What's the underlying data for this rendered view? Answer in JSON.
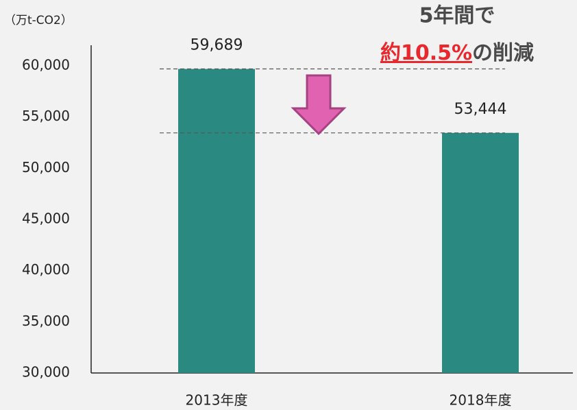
{
  "chart_data": {
    "type": "bar",
    "unit_label": "（万t-CO2）",
    "annotation": {
      "line1": "5年間で",
      "highlight": "約10.5%",
      "rest": "の削減"
    },
    "categories": [
      "2013年度",
      "2018年度"
    ],
    "values": [
      59689,
      53444
    ],
    "value_labels": [
      "59,689",
      "53,444"
    ],
    "color": "#2a8a82",
    "ylim": [
      30000,
      62000
    ],
    "yticks": [
      {
        "value": 30000,
        "label": "30,000"
      },
      {
        "value": 35000,
        "label": "35,000"
      },
      {
        "value": 40000,
        "label": "40,000"
      },
      {
        "value": 45000,
        "label": "45,000"
      },
      {
        "value": 50000,
        "label": "50,000"
      },
      {
        "value": 55000,
        "label": "55,000"
      },
      {
        "value": 60000,
        "label": "60,000"
      }
    ],
    "grid": false
  }
}
